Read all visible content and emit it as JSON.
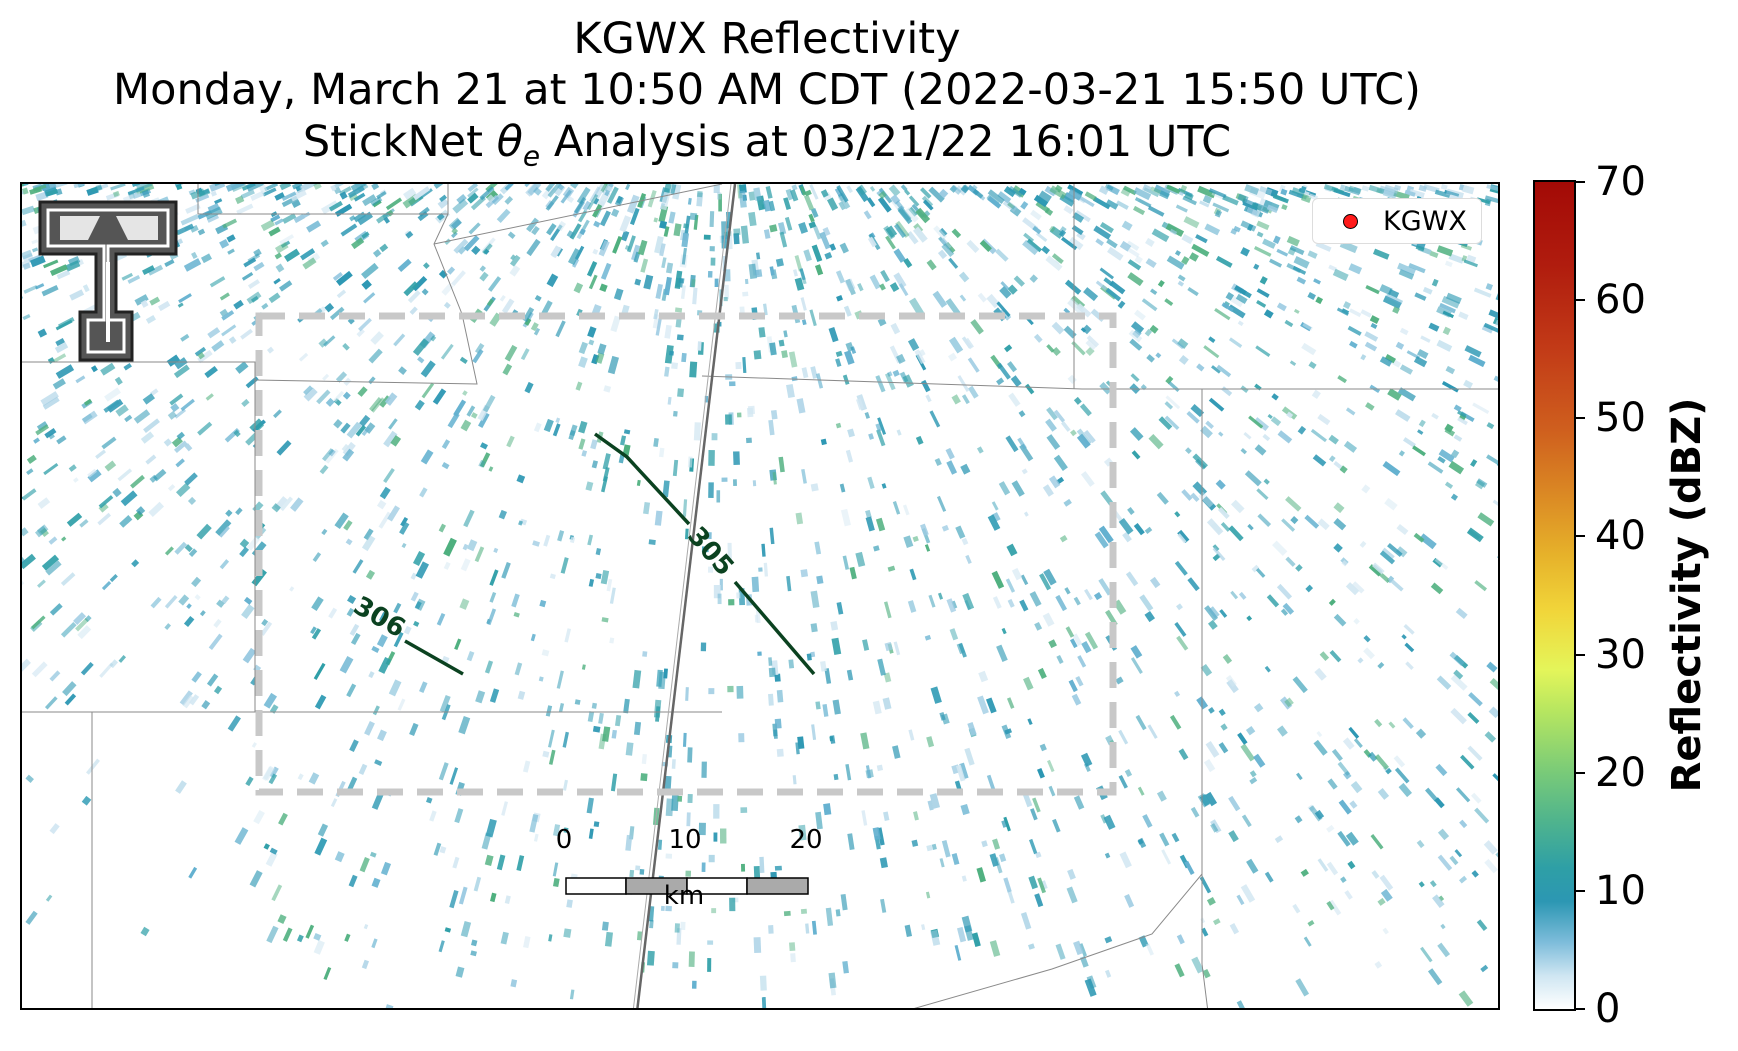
{
  "title": {
    "line1": "KGWX Reflectivity",
    "line2": "Monday, March 21 at 10:50 AM CDT (2022-03-21 15:50 UTC)",
    "line3_prefix": "StickNet ",
    "line3_symbol": "θ",
    "line3_subscript": "e",
    "line3_suffix": " Analysis at 03/21/22 16:01 UTC"
  },
  "legend": {
    "label": "KGWX",
    "marker_color": "#ff1a1a"
  },
  "colorbar": {
    "label": "Reflectivity (dBZ)",
    "ticks": [
      "0",
      "10",
      "20",
      "30",
      "40",
      "50",
      "60",
      "70"
    ],
    "range": [
      0,
      70
    ]
  },
  "contours": [
    {
      "label": "306"
    },
    {
      "label": "305"
    }
  ],
  "scalebar": {
    "ticks": [
      "0",
      "10",
      "20"
    ],
    "unit": "km"
  },
  "logo": {
    "icon": "texas-tech-double-t-logo"
  },
  "colors": {
    "contour": "#0b4220",
    "radar_low": "#2c97b3",
    "domain_box": "#c8c8c8"
  }
}
